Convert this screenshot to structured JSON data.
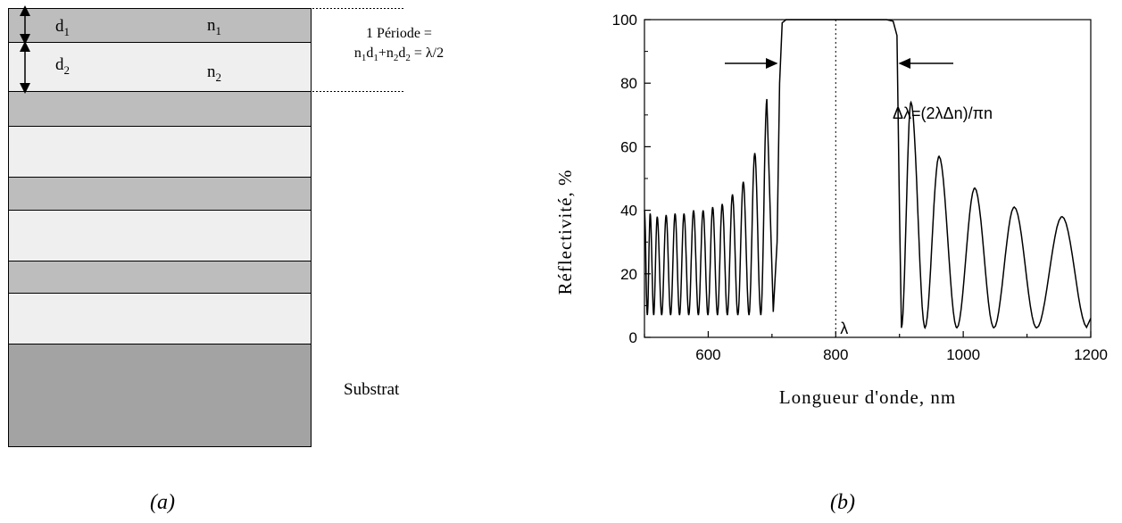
{
  "panel_a": {
    "caption": "(a)",
    "layer1": {
      "d": "d",
      "d_sub": "1",
      "n": "n",
      "n_sub": "1"
    },
    "layer2": {
      "d": "d",
      "d_sub": "2",
      "n": "n",
      "n_sub": "2"
    },
    "period_line1": "1 Période =",
    "period_line2": {
      "n1": "n",
      "n1s": "1",
      "d1": "d",
      "d1s": "1",
      "plus": "+n",
      "n2s": "2",
      "d2": "d",
      "d2s": "2",
      "rest": " = λ/2"
    },
    "substrate_label": "Substrat"
  },
  "panel_b": {
    "caption": "(b)"
  },
  "chart_data": {
    "type": "line",
    "title": "",
    "xlabel": "Longueur d'onde, nm",
    "ylabel": "Réflectivité, %",
    "xlim": [
      500,
      1200
    ],
    "ylim": [
      0,
      100
    ],
    "xticks": [
      "600",
      "800",
      "1000",
      "1200"
    ],
    "yticks": [
      "0",
      "20",
      "40",
      "60",
      "80",
      "100"
    ],
    "annotations": {
      "center_label": "λ",
      "bandwidth_formula": "Δλ=(2λΔn)/πn",
      "center_line_x": 800
    },
    "series": [
      {
        "x": [
          500,
          520,
          540,
          560,
          580,
          600,
          620,
          640,
          660,
          680,
          700,
          715,
          725,
          740,
          760,
          780,
          800,
          820,
          840,
          860,
          880,
          895,
          905,
          920,
          960,
          1015,
          1080,
          1155
        ],
        "y": [
          40,
          38,
          38.5,
          39,
          39.5,
          40,
          41,
          44,
          49,
          58,
          75,
          100,
          100,
          100,
          100,
          100,
          100,
          100,
          100,
          100,
          100,
          100,
          3,
          74,
          57,
          47,
          41,
          38
        ]
      }
    ]
  }
}
